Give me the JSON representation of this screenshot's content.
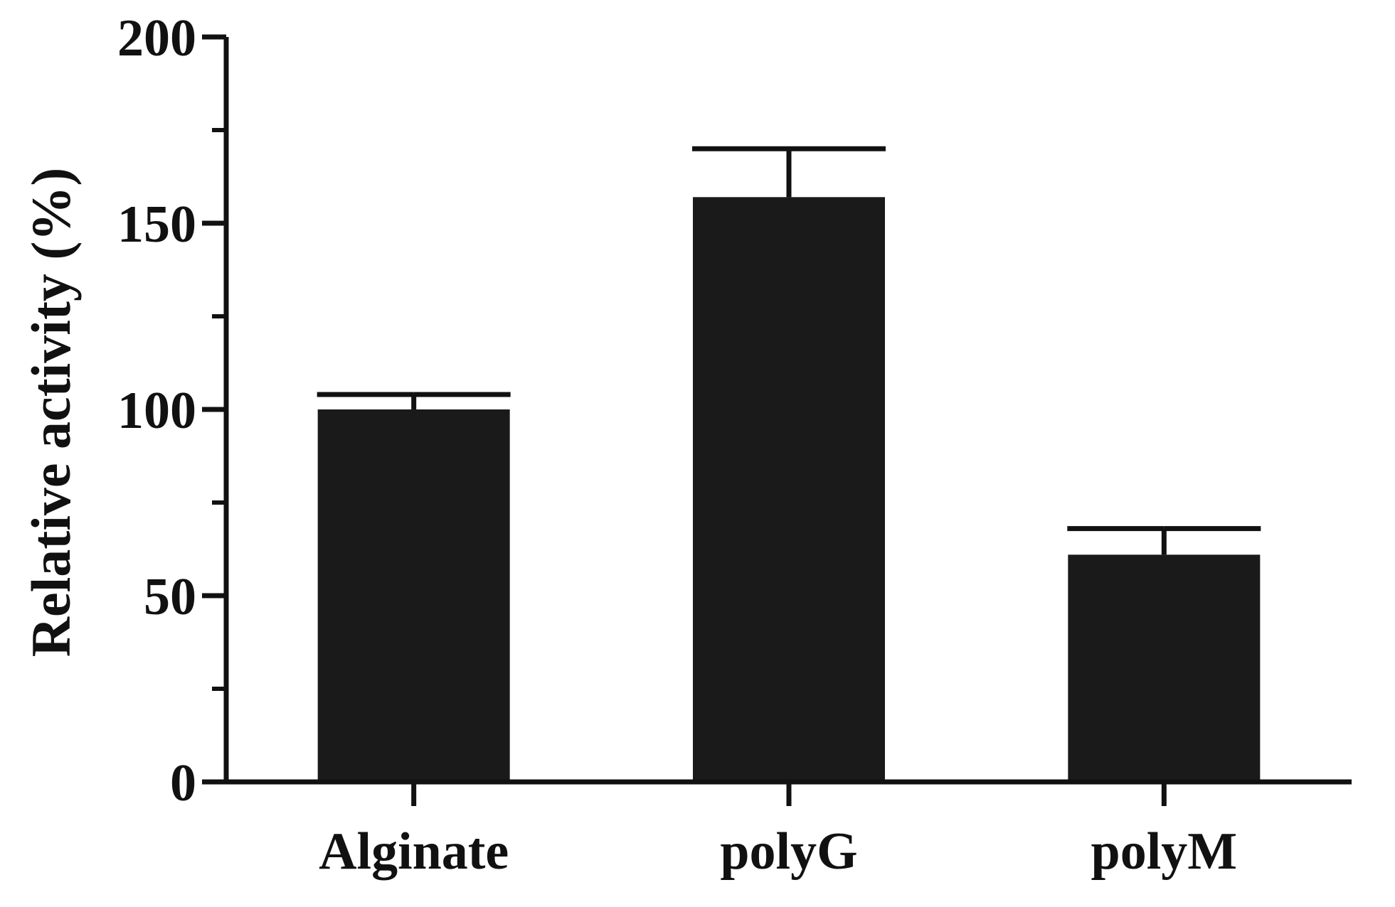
{
  "chart_data": {
    "type": "bar",
    "categories": [
      "Alginate",
      "polyG",
      "polyM"
    ],
    "values": [
      100,
      157,
      61
    ],
    "error_upper": [
      104,
      170,
      68
    ],
    "xlabel": "",
    "ylabel": "Relative activity (%)",
    "ylim": [
      0,
      200
    ],
    "yticks_major": [
      0,
      50,
      100,
      150,
      200
    ],
    "yticks_minor": [
      25,
      75,
      125,
      175
    ],
    "ytick_labels": [
      "0",
      "50",
      "100",
      "150",
      "200"
    ],
    "grid": false,
    "legend": "none",
    "colors": {
      "bar": "#1a1a1a",
      "axis": "#111111",
      "background": "#ffffff"
    }
  }
}
